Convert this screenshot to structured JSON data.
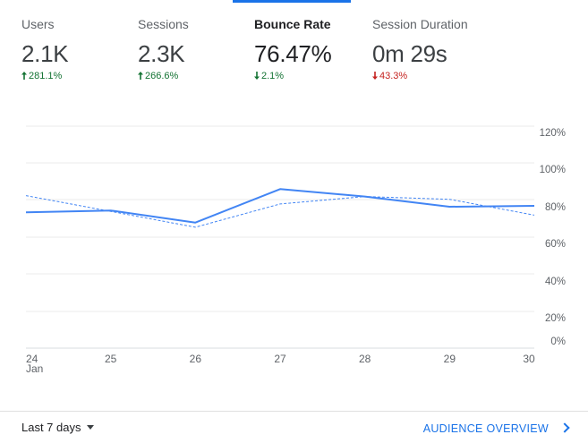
{
  "metrics": [
    {
      "label": "Users",
      "value": "2.1K",
      "change": "281.1%",
      "direction": "up"
    },
    {
      "label": "Sessions",
      "value": "2.3K",
      "change": "266.6%",
      "direction": "up"
    },
    {
      "label": "Bounce Rate",
      "value": "76.47%",
      "change": "2.1%",
      "direction": "down",
      "active": true
    },
    {
      "label": "Session Duration",
      "value": "0m 29s",
      "change": "43.3%",
      "direction": "down"
    }
  ],
  "colors": {
    "accent": "#1a73e8",
    "line": "#4285f4",
    "positive": "#137333",
    "negative": "#c5221f"
  },
  "chart_data": {
    "type": "line",
    "x_ticks": [
      "24",
      "25",
      "26",
      "27",
      "28",
      "29",
      "30"
    ],
    "x_sublabel": "Jan",
    "y_ticks": [
      "120%",
      "100%",
      "80%",
      "60%",
      "40%",
      "20%",
      "0%"
    ],
    "ylim": [
      0,
      120
    ],
    "grid": true,
    "series": [
      {
        "style": "solid",
        "values": [
          76.5,
          77.5,
          71,
          89,
          85,
          79.5,
          80
        ]
      },
      {
        "style": "dashed",
        "values": [
          85.5,
          77,
          68.5,
          81,
          85,
          83.5,
          75
        ]
      }
    ]
  },
  "footer": {
    "range_label": "Last 7 days",
    "link_label": "AUDIENCE OVERVIEW"
  }
}
